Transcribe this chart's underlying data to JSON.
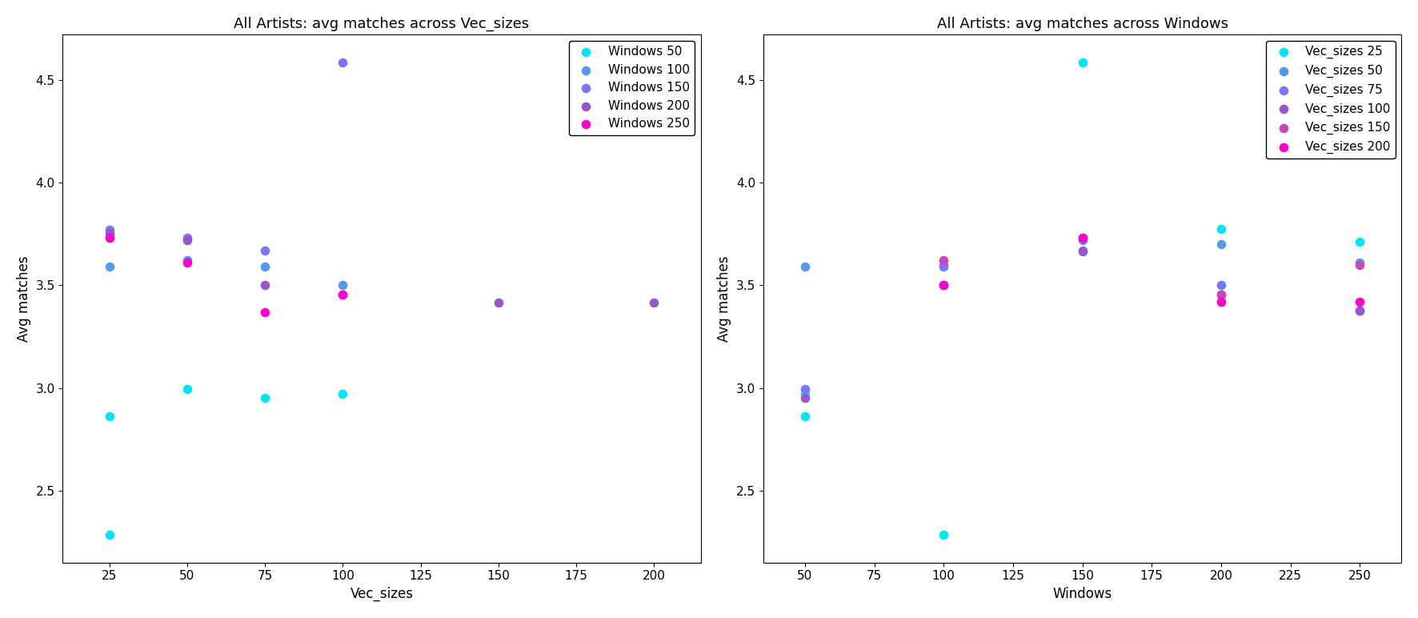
{
  "plot1": {
    "title": "All Artists: avg matches across Vec_sizes",
    "xlabel": "Vec_sizes",
    "ylabel": "Avg matches",
    "series": [
      {
        "label": "Windows 50",
        "color": "#00e5ff",
        "x": [
          25,
          25,
          50,
          75,
          100
        ],
        "y": [
          2.285,
          2.86,
          2.995,
          2.95,
          2.97
        ]
      },
      {
        "label": "Windows 100",
        "color": "#5599ee",
        "x": [
          25,
          50,
          75,
          100
        ],
        "y": [
          3.59,
          3.62,
          3.59,
          3.5
        ]
      },
      {
        "label": "Windows 150",
        "color": "#7777ff",
        "x": [
          25,
          50,
          75,
          100
        ],
        "y": [
          3.77,
          3.73,
          3.67,
          4.585
        ]
      },
      {
        "label": "Windows 200",
        "color": "#9955cc",
        "x": [
          25,
          50,
          75,
          100,
          150,
          200
        ],
        "y": [
          3.755,
          3.72,
          3.5,
          3.455,
          3.415,
          3.415
        ]
      },
      {
        "label": "Windows 250",
        "color": "#ff00cc",
        "x": [
          25,
          50,
          75,
          100
        ],
        "y": [
          3.73,
          3.61,
          3.37,
          3.455
        ]
      }
    ],
    "xlim": [
      10,
      215
    ],
    "ylim": [
      2.15,
      4.72
    ],
    "xticks": [
      25,
      50,
      75,
      100,
      125,
      150,
      175,
      200
    ]
  },
  "plot2": {
    "title": "All Artists: avg matches across Windows",
    "xlabel": "Windows",
    "ylabel": "Avg matches",
    "series": [
      {
        "label": "Vec_sizes 25",
        "color": "#00e5ff",
        "x": [
          50,
          50,
          100,
          150,
          200,
          250
        ],
        "y": [
          2.86,
          2.97,
          2.285,
          4.585,
          3.775,
          3.71
        ]
      },
      {
        "label": "Vec_sizes 50",
        "color": "#5599ee",
        "x": [
          50,
          100,
          150,
          200,
          250
        ],
        "y": [
          3.59,
          3.6,
          3.72,
          3.7,
          3.61
        ]
      },
      {
        "label": "Vec_sizes 75",
        "color": "#7777ff",
        "x": [
          50,
          100,
          150,
          200,
          250
        ],
        "y": [
          2.995,
          3.59,
          3.67,
          3.5,
          3.375
        ]
      },
      {
        "label": "Vec_sizes 100",
        "color": "#9955cc",
        "x": [
          50,
          100,
          150,
          200,
          250
        ],
        "y": [
          2.95,
          3.5,
          3.665,
          3.455,
          3.375
        ]
      },
      {
        "label": "Vec_sizes 150",
        "color": "#cc44bb",
        "x": [
          100,
          150,
          200,
          250
        ],
        "y": [
          3.62,
          3.73,
          3.455,
          3.6
        ]
      },
      {
        "label": "Vec_sizes 200",
        "color": "#ff00cc",
        "x": [
          100,
          150,
          200,
          250
        ],
        "y": [
          3.5,
          3.73,
          3.42,
          3.42
        ]
      }
    ],
    "xlim": [
      35,
      265
    ],
    "ylim": [
      2.15,
      4.72
    ],
    "xticks": [
      50,
      75,
      100,
      125,
      150,
      175,
      200,
      225,
      250
    ]
  }
}
